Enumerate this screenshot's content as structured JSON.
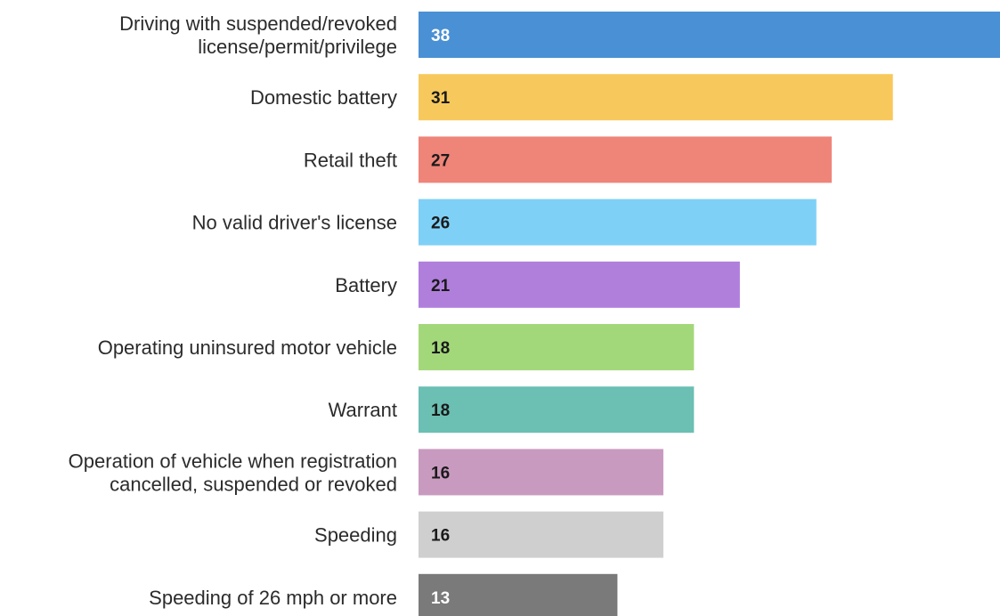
{
  "chart_data": {
    "type": "bar",
    "orientation": "horizontal",
    "categories": [
      [
        "Driving with suspended/revoked",
        "license/permit/privilege"
      ],
      [
        "Domestic battery"
      ],
      [
        "Retail theft"
      ],
      [
        "No valid driver's license"
      ],
      [
        "Battery"
      ],
      [
        "Operating uninsured motor vehicle"
      ],
      [
        "Warrant"
      ],
      [
        "Operation of vehicle when registration",
        "cancelled, suspended or revoked"
      ],
      [
        "Speeding"
      ],
      [
        "Speeding of 26 mph or more"
      ]
    ],
    "values": [
      38,
      31,
      27,
      26,
      21,
      18,
      18,
      16,
      16,
      13
    ],
    "colors": [
      "#4a90d4",
      "#f7c95c",
      "#ef8479",
      "#7fd0f7",
      "#b07fdc",
      "#a3d87a",
      "#6bbfb3",
      "#c99abf",
      "#cfcfcf",
      "#7a7a7a"
    ],
    "value_label_colors": [
      "#ffffff",
      "#1a1a1a",
      "#1a1a1a",
      "#1a1a1a",
      "#1a1a1a",
      "#1a1a1a",
      "#1a1a1a",
      "#1a1a1a",
      "#1a1a1a",
      "#ffffff"
    ],
    "title": "",
    "xlabel": "",
    "ylabel": "",
    "xlim": [
      0,
      38
    ],
    "grid": false,
    "legend": "none"
  }
}
